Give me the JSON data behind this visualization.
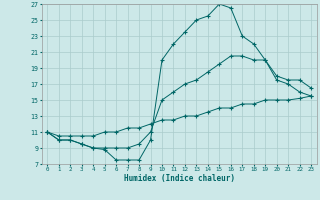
{
  "title": "",
  "xlabel": "Humidex (Indice chaleur)",
  "bg_color": "#cce8e8",
  "grid_color": "#aacccc",
  "line_color": "#006666",
  "xlim": [
    -0.5,
    23.5
  ],
  "ylim": [
    7,
    27
  ],
  "xticks": [
    0,
    1,
    2,
    3,
    4,
    5,
    6,
    7,
    8,
    9,
    10,
    11,
    12,
    13,
    14,
    15,
    16,
    17,
    18,
    19,
    20,
    21,
    22,
    23
  ],
  "yticks": [
    7,
    9,
    11,
    13,
    15,
    17,
    19,
    21,
    23,
    25,
    27
  ],
  "curve1_x": [
    0,
    1,
    2,
    3,
    4,
    5,
    6,
    7,
    8,
    9,
    10,
    11,
    12,
    13,
    14,
    15,
    16,
    17,
    18,
    19,
    20,
    21,
    22,
    23
  ],
  "curve1_y": [
    11,
    10,
    10,
    9.5,
    9,
    8.8,
    7.5,
    7.5,
    7.5,
    10,
    20,
    22,
    23.5,
    25,
    25.5,
    27,
    26.5,
    23,
    22,
    20,
    17.5,
    17,
    16,
    15.5
  ],
  "curve2_x": [
    0,
    1,
    2,
    3,
    4,
    5,
    6,
    7,
    8,
    9,
    10,
    11,
    12,
    13,
    14,
    15,
    16,
    17,
    18,
    19,
    20,
    21,
    22,
    23
  ],
  "curve2_y": [
    11,
    10,
    10,
    9.5,
    9,
    9,
    9,
    9,
    9.5,
    11,
    15,
    16,
    17,
    17.5,
    18.5,
    19.5,
    20.5,
    20.5,
    20,
    20,
    18,
    17.5,
    17.5,
    16.5
  ],
  "curve3_x": [
    0,
    1,
    2,
    3,
    4,
    5,
    6,
    7,
    8,
    9,
    10,
    11,
    12,
    13,
    14,
    15,
    16,
    17,
    18,
    19,
    20,
    21,
    22,
    23
  ],
  "curve3_y": [
    11,
    10.5,
    10.5,
    10.5,
    10.5,
    11,
    11,
    11.5,
    11.5,
    12,
    12.5,
    12.5,
    13,
    13,
    13.5,
    14,
    14,
    14.5,
    14.5,
    15,
    15,
    15,
    15.2,
    15.5
  ]
}
